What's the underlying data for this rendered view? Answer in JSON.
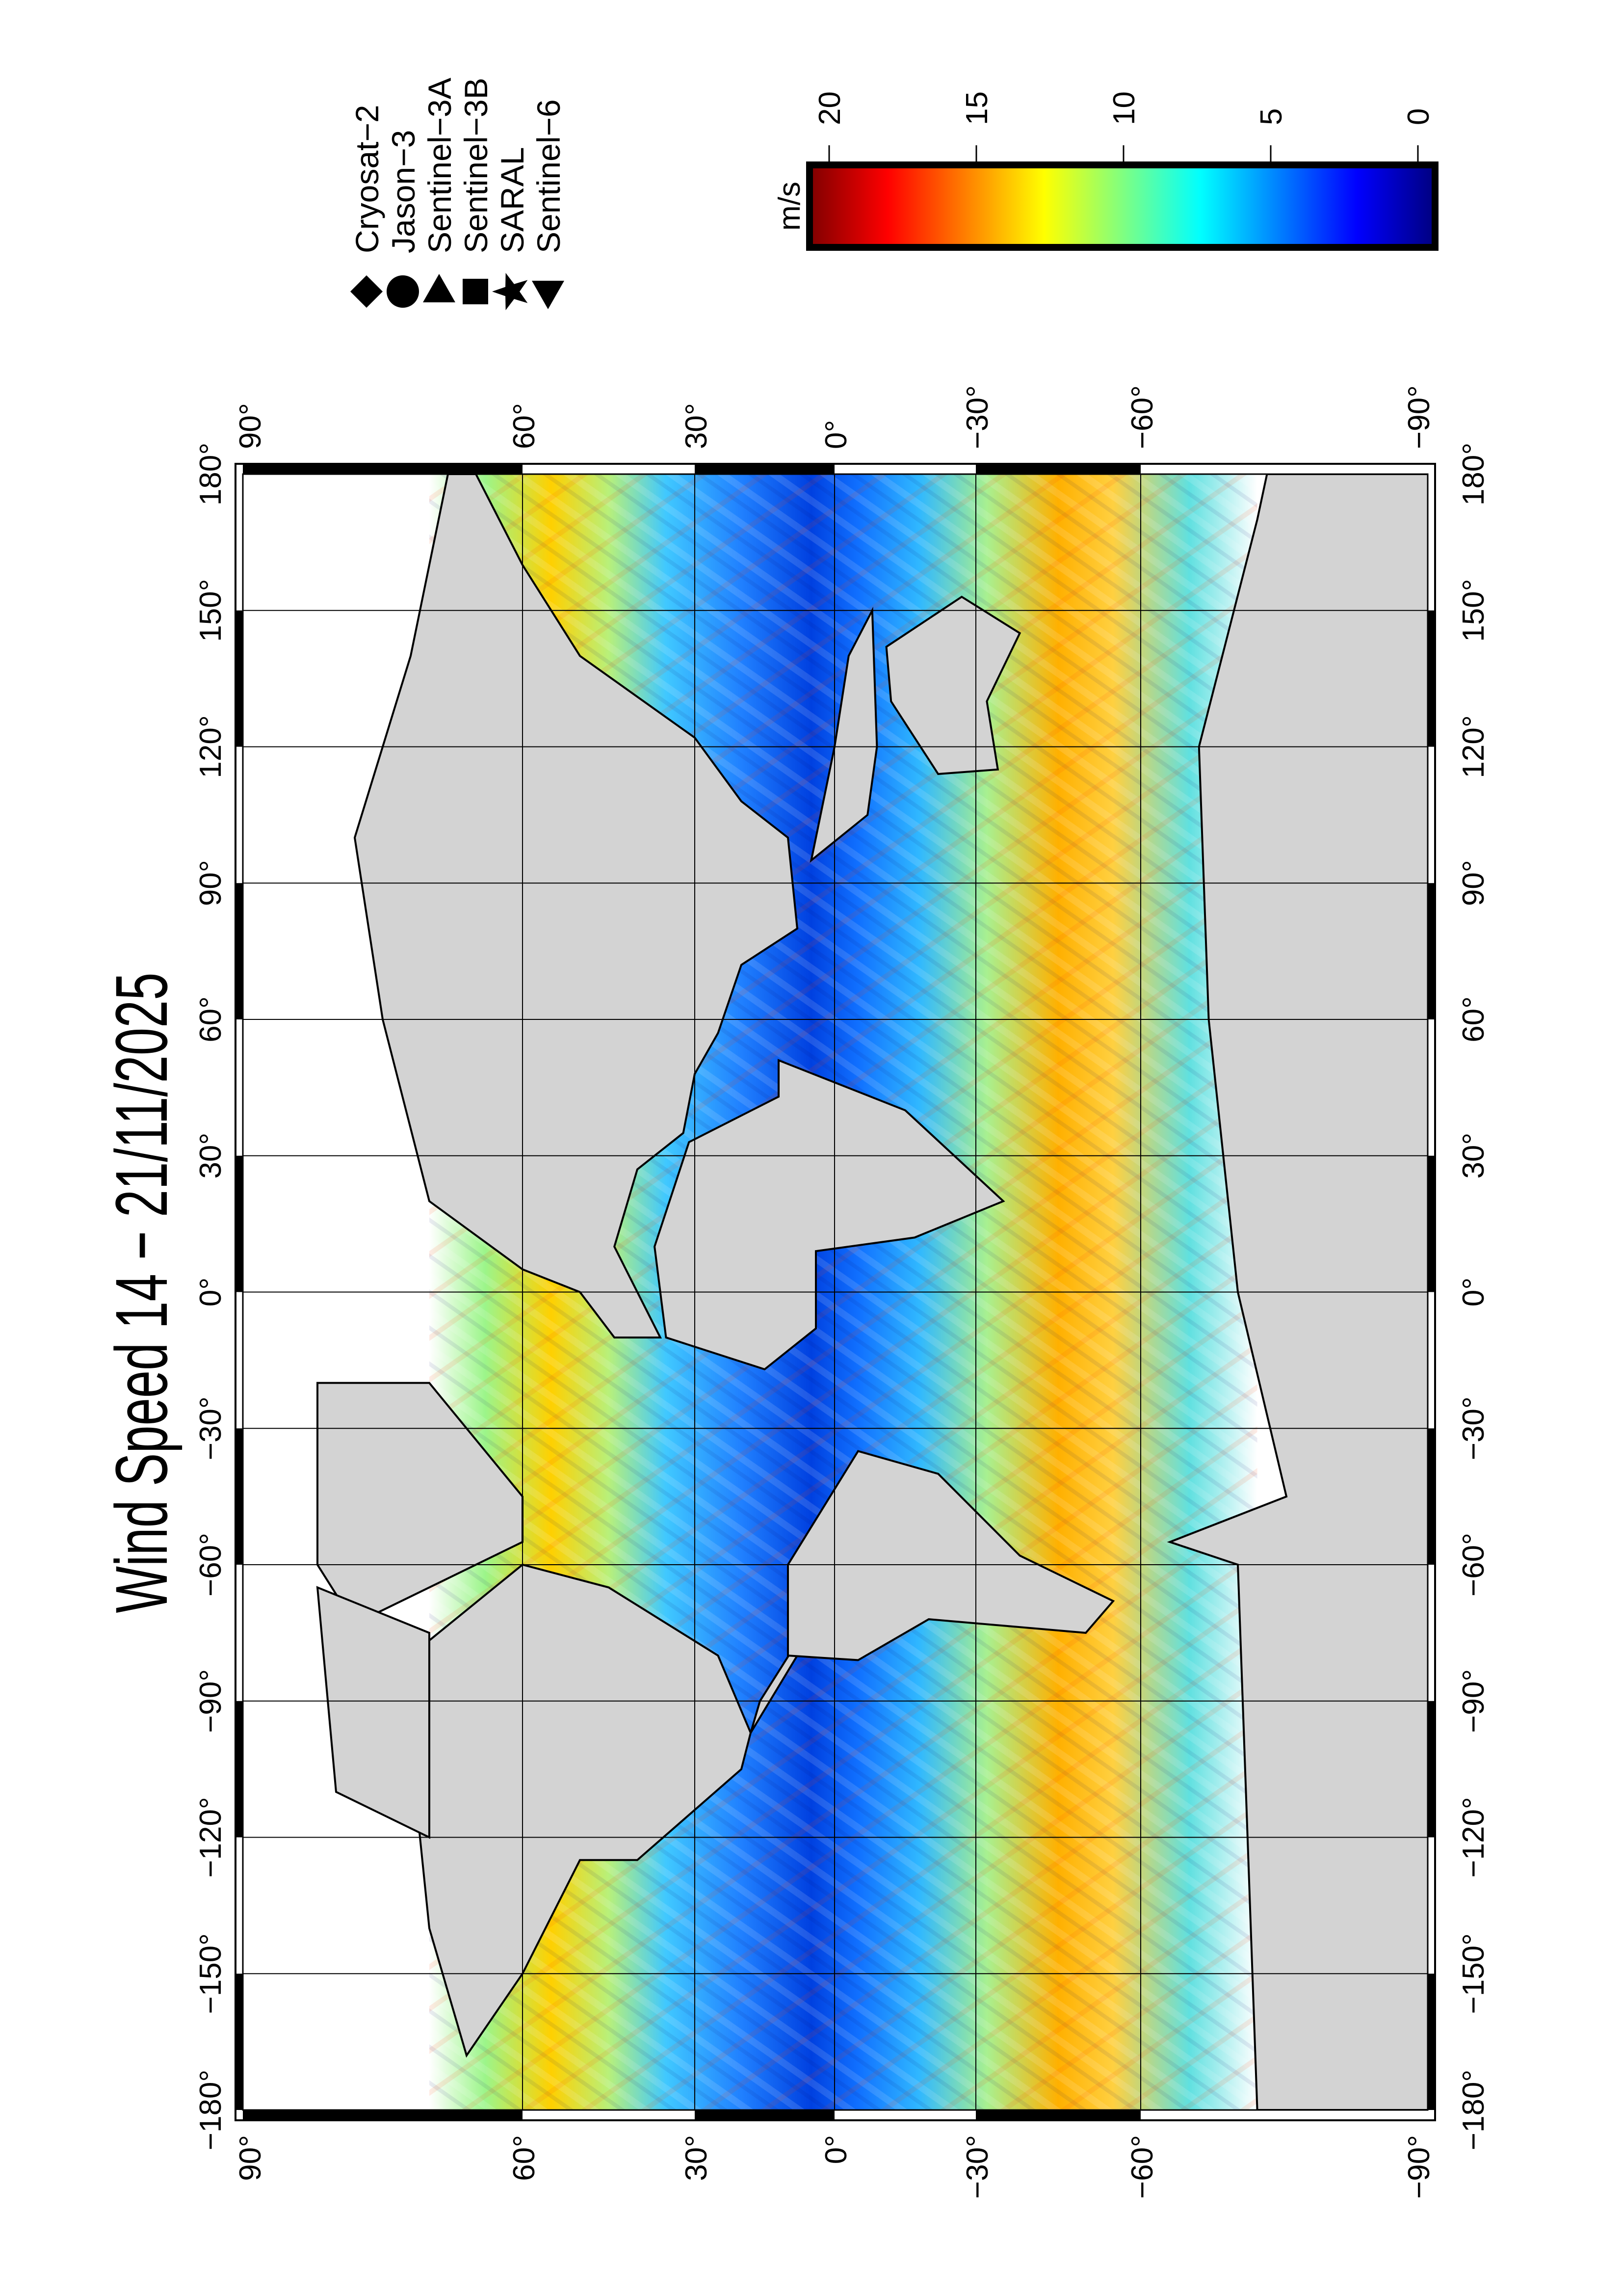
{
  "title": "Wind Speed 14 − 21/11/2025",
  "map": {
    "projection": "Miller cylindrical",
    "orientation": "rotated 90 degrees counter-clockwise",
    "lat_ticks": [
      {
        "value": 90,
        "label": "90°"
      },
      {
        "value": 60,
        "label": "60°"
      },
      {
        "value": 30,
        "label": "30°"
      },
      {
        "value": 0,
        "label": "0°"
      },
      {
        "value": -30,
        "label": "−30°"
      },
      {
        "value": -60,
        "label": "−60°"
      },
      {
        "value": -90,
        "label": "−90°"
      }
    ],
    "lon_ticks": [
      {
        "value": -180,
        "label": "−180°"
      },
      {
        "value": -150,
        "label": "−150°"
      },
      {
        "value": -120,
        "label": "−120°"
      },
      {
        "value": -90,
        "label": "−90°"
      },
      {
        "value": -60,
        "label": "−60°"
      },
      {
        "value": -30,
        "label": "−30°"
      },
      {
        "value": 0,
        "label": "0°"
      },
      {
        "value": 30,
        "label": "30°"
      },
      {
        "value": 60,
        "label": "60°"
      },
      {
        "value": 90,
        "label": "90°"
      },
      {
        "value": 120,
        "label": "120°"
      },
      {
        "value": 150,
        "label": "150°"
      },
      {
        "value": 180,
        "label": "180°"
      }
    ],
    "land_color": "#d3d3d3",
    "grid": true
  },
  "colorbar": {
    "unit": "m/s",
    "range": [
      0,
      20
    ],
    "ticks": [
      {
        "value": 20,
        "label": "20"
      },
      {
        "value": 15,
        "label": "15"
      },
      {
        "value": 10,
        "label": "10"
      },
      {
        "value": 5,
        "label": "5"
      },
      {
        "value": 0,
        "label": "0"
      }
    ],
    "colormap": [
      "#7f0000",
      "#ff0000",
      "#ff8000",
      "#ffff00",
      "#80ff80",
      "#00ffff",
      "#0080ff",
      "#0000ff",
      "#00007f"
    ]
  },
  "legend": [
    {
      "name": "Cryosat−2",
      "symbol": "diamond"
    },
    {
      "name": "Jason−3",
      "symbol": "circle"
    },
    {
      "name": "Sentinel−3A",
      "symbol": "triangle-left"
    },
    {
      "name": "Sentinel−3B",
      "symbol": "square"
    },
    {
      "name": "SARAL",
      "symbol": "star"
    },
    {
      "name": "Sentinel−6",
      "symbol": "triangle-right"
    }
  ]
}
